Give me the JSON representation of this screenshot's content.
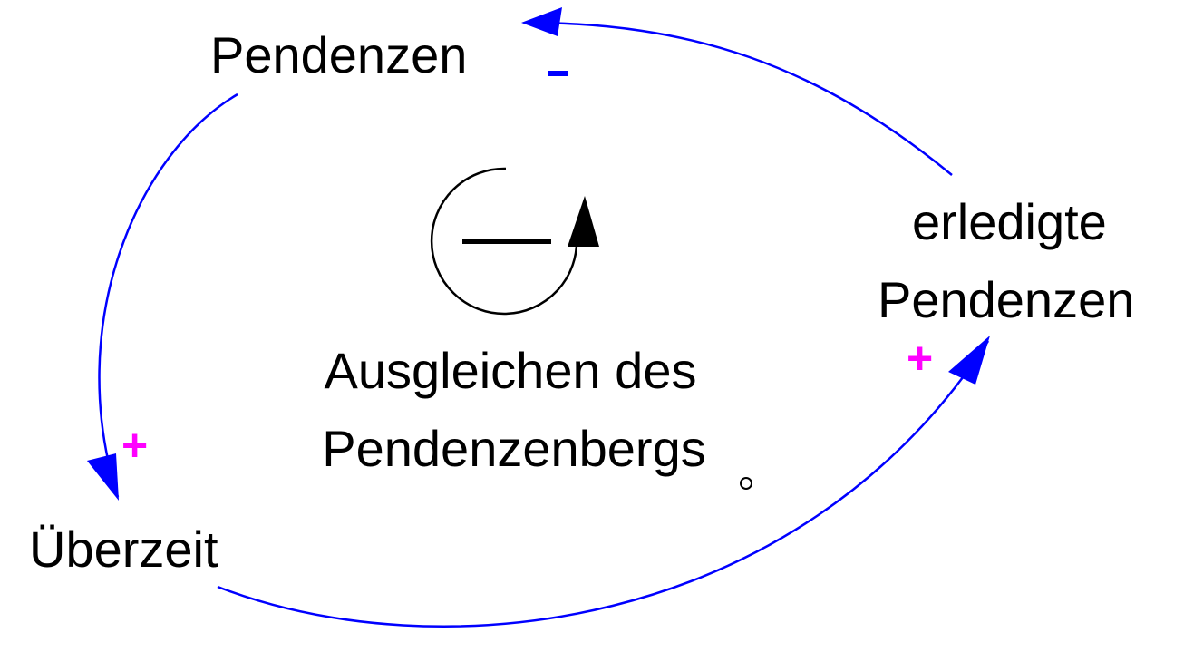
{
  "nodes": {
    "pendenzen": "Pendenzen",
    "ueberzeit": "Überzeit",
    "erledigte_line1": "erledigte",
    "erledigte_line2": "Pendenzen"
  },
  "loop": {
    "name_line1": "Ausgleichen des",
    "name_line2": "Pendenzenbergs",
    "polarity_symbol": "—"
  },
  "links": [
    {
      "from": "Pendenzen",
      "to": "Überzeit",
      "polarity": "+"
    },
    {
      "from": "Überzeit",
      "to": "erledigte Pendenzen",
      "polarity": "+"
    },
    {
      "from": "erledigte Pendenzen",
      "to": "Pendenzen",
      "polarity": "-"
    }
  ],
  "colors": {
    "arrow": "#0000ff",
    "plus": "#ff00ff",
    "minus": "#0000ff",
    "loop_icon": "#000000",
    "text": "#000000"
  }
}
